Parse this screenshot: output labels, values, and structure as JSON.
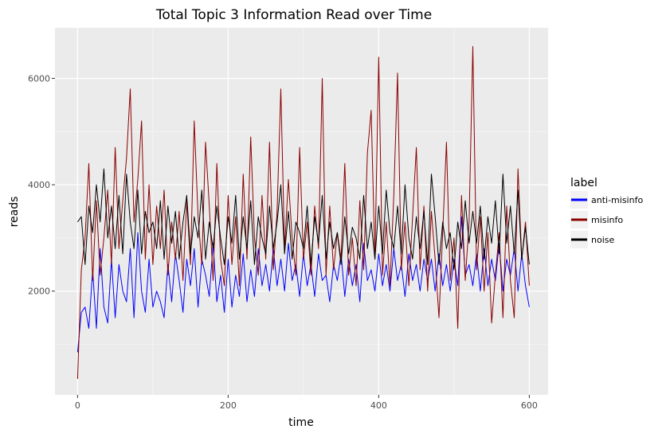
{
  "chart_data": {
    "type": "line",
    "title": "Total Topic 3 Information Read over Time",
    "xlabel": "time",
    "ylabel": "reads",
    "xlim": [
      -30,
      625
    ],
    "ylim": [
      50,
      6950
    ],
    "x_ticks": [
      0,
      200,
      400,
      600
    ],
    "x_tick_labels": [
      "0",
      "200",
      "400",
      "600"
    ],
    "y_ticks": [
      2000,
      4000,
      6000
    ],
    "y_tick_labels": [
      "2000",
      "4000",
      "6000"
    ],
    "grid": true,
    "legend": {
      "title": "label",
      "position": "right"
    },
    "series": [
      {
        "name": "anti-misinfo",
        "color": "#0000ff",
        "x": [
          0,
          5,
          10,
          15,
          20,
          25,
          30,
          35,
          40,
          45,
          50,
          55,
          60,
          65,
          70,
          75,
          80,
          85,
          90,
          95,
          100,
          105,
          110,
          115,
          120,
          125,
          130,
          135,
          140,
          145,
          150,
          155,
          160,
          165,
          170,
          175,
          180,
          185,
          190,
          195,
          200,
          205,
          210,
          215,
          220,
          225,
          230,
          235,
          240,
          245,
          250,
          255,
          260,
          265,
          270,
          275,
          280,
          285,
          290,
          295,
          300,
          305,
          310,
          315,
          320,
          325,
          330,
          335,
          340,
          345,
          350,
          355,
          360,
          365,
          370,
          375,
          380,
          385,
          390,
          395,
          400,
          405,
          410,
          415,
          420,
          425,
          430,
          435,
          440,
          445,
          450,
          455,
          460,
          465,
          470,
          475,
          480,
          485,
          490,
          495,
          500,
          505,
          510,
          515,
          520,
          525,
          530,
          535,
          540,
          545,
          550,
          555,
          560,
          565,
          570,
          575,
          580,
          585,
          590,
          595,
          600
        ],
        "y": [
          850,
          1600,
          1700,
          1300,
          2400,
          1300,
          2800,
          1700,
          1400,
          2600,
          1500,
          2500,
          2000,
          1800,
          2800,
          1500,
          3100,
          2000,
          1600,
          2600,
          1700,
          2000,
          1800,
          1500,
          2500,
          1800,
          2700,
          2200,
          1600,
          2600,
          2100,
          2800,
          1700,
          2600,
          2300,
          1900,
          2900,
          1800,
          2300,
          1600,
          2600,
          1700,
          2300,
          1900,
          2700,
          1800,
          2400,
          1900,
          2800,
          2100,
          2500,
          2000,
          2800,
          2100,
          2600,
          2000,
          2900,
          2200,
          2500,
          1900,
          2700,
          2100,
          2500,
          1900,
          2700,
          2200,
          2300,
          1800,
          2500,
          2200,
          2700,
          1900,
          2600,
          2100,
          2500,
          1800,
          2900,
          2200,
          2400,
          2000,
          2700,
          2100,
          2500,
          2000,
          2800,
          2200,
          2500,
          1900,
          2700,
          2200,
          2500,
          2000,
          2600,
          2200,
          2600,
          2000,
          2700,
          2100,
          2500,
          2000,
          2600,
          2100,
          3400,
          2300,
          2500,
          2100,
          2700,
          2000,
          2800,
          2100,
          2600,
          2200,
          2900,
          2000,
          2600,
          2300,
          2800,
          2000,
          2700,
          2100,
          1700
        ]
      },
      {
        "name": "misinfo",
        "color": "#8b0000",
        "x": [
          0,
          5,
          10,
          15,
          20,
          25,
          30,
          35,
          40,
          45,
          50,
          55,
          60,
          65,
          70,
          75,
          80,
          85,
          90,
          95,
          100,
          105,
          110,
          115,
          120,
          125,
          130,
          135,
          140,
          145,
          150,
          155,
          160,
          165,
          170,
          175,
          180,
          185,
          190,
          195,
          200,
          205,
          210,
          215,
          220,
          225,
          230,
          235,
          240,
          245,
          250,
          255,
          260,
          265,
          270,
          275,
          280,
          285,
          290,
          295,
          300,
          305,
          310,
          315,
          320,
          325,
          330,
          335,
          340,
          345,
          350,
          355,
          360,
          365,
          370,
          375,
          380,
          385,
          390,
          395,
          400,
          405,
          410,
          415,
          420,
          425,
          430,
          435,
          440,
          445,
          450,
          455,
          460,
          465,
          470,
          475,
          480,
          485,
          490,
          495,
          500,
          505,
          510,
          515,
          520,
          525,
          530,
          535,
          540,
          545,
          550,
          555,
          560,
          565,
          570,
          575,
          580,
          585,
          590,
          595,
          600
        ],
        "y": [
          350,
          2400,
          3000,
          4400,
          2200,
          3700,
          2300,
          3000,
          3900,
          2500,
          4700,
          2800,
          3700,
          4500,
          5800,
          3300,
          4100,
          5200,
          2600,
          4000,
          2500,
          3600,
          2800,
          3900,
          2300,
          3300,
          2600,
          3500,
          2200,
          3700,
          2500,
          5200,
          3400,
          2500,
          4800,
          3600,
          2200,
          4400,
          2600,
          2100,
          3800,
          2500,
          3400,
          2100,
          4200,
          2600,
          4900,
          3000,
          2300,
          3800,
          2600,
          4800,
          2400,
          3500,
          5800,
          2800,
          4100,
          3000,
          2300,
          4700,
          2600,
          3300,
          2300,
          3600,
          2800,
          6000,
          2300,
          3600,
          2400,
          3100,
          2600,
          4400,
          2300,
          3000,
          2100,
          3700,
          2400,
          4600,
          5400,
          2600,
          6400,
          2300,
          3300,
          2100,
          3800,
          6100,
          2400,
          3300,
          2100,
          3400,
          4700,
          2400,
          3600,
          2000,
          3500,
          2600,
          1500,
          3100,
          4800,
          2200,
          3000,
          1300,
          3800,
          2200,
          3300,
          6600,
          2400,
          3400,
          2000,
          3100,
          1400,
          2300,
          3100,
          1500,
          3600,
          2200,
          1500,
          4300,
          2600,
          3300,
          2100
        ]
      },
      {
        "name": "noise",
        "color": "#000000",
        "x": [
          0,
          5,
          10,
          15,
          20,
          25,
          30,
          35,
          40,
          45,
          50,
          55,
          60,
          65,
          70,
          75,
          80,
          85,
          90,
          95,
          100,
          105,
          110,
          115,
          120,
          125,
          130,
          135,
          140,
          145,
          150,
          155,
          160,
          165,
          170,
          175,
          180,
          185,
          190,
          195,
          200,
          205,
          210,
          215,
          220,
          225,
          230,
          235,
          240,
          245,
          250,
          255,
          260,
          265,
          270,
          275,
          280,
          285,
          290,
          295,
          300,
          305,
          310,
          315,
          320,
          325,
          330,
          335,
          340,
          345,
          350,
          355,
          360,
          365,
          370,
          375,
          380,
          385,
          390,
          395,
          400,
          405,
          410,
          415,
          420,
          425,
          430,
          435,
          440,
          445,
          450,
          455,
          460,
          465,
          470,
          475,
          480,
          485,
          490,
          495,
          500,
          505,
          510,
          515,
          520,
          525,
          530,
          535,
          540,
          545,
          550,
          555,
          560,
          565,
          570,
          575,
          580,
          585,
          590,
          595,
          600
        ],
        "y": [
          3300,
          3400,
          2500,
          3600,
          3100,
          4000,
          3300,
          4300,
          3000,
          3600,
          2800,
          3800,
          2700,
          4200,
          3300,
          2800,
          3900,
          2700,
          3500,
          3100,
          3300,
          2800,
          3700,
          2600,
          3600,
          2900,
          3500,
          2600,
          3300,
          3800,
          2700,
          3400,
          3000,
          3900,
          2600,
          3300,
          2800,
          3600,
          3000,
          2500,
          3400,
          2900,
          3800,
          2600,
          3400,
          2800,
          3700,
          2500,
          3400,
          3000,
          2700,
          3600,
          2800,
          3300,
          4000,
          2700,
          3500,
          2600,
          3300,
          3100,
          2800,
          3600,
          2500,
          3400,
          2900,
          3800,
          2600,
          3300,
          2800,
          3100,
          2500,
          3400,
          2700,
          3200,
          3000,
          2600,
          3800,
          2800,
          3300,
          2600,
          3600,
          2700,
          3900,
          3100,
          2800,
          3600,
          2700,
          4000,
          3000,
          2600,
          3400,
          2800,
          3500,
          2500,
          4200,
          3400,
          2500,
          3300,
          2800,
          3100,
          2400,
          3300,
          2800,
          3700,
          2900,
          3500,
          2900,
          3600,
          2600,
          3400,
          2900,
          3700,
          2700,
          4200,
          2900,
          3600,
          2700,
          3900,
          2600,
          3200,
          2500
        ]
      }
    ]
  }
}
